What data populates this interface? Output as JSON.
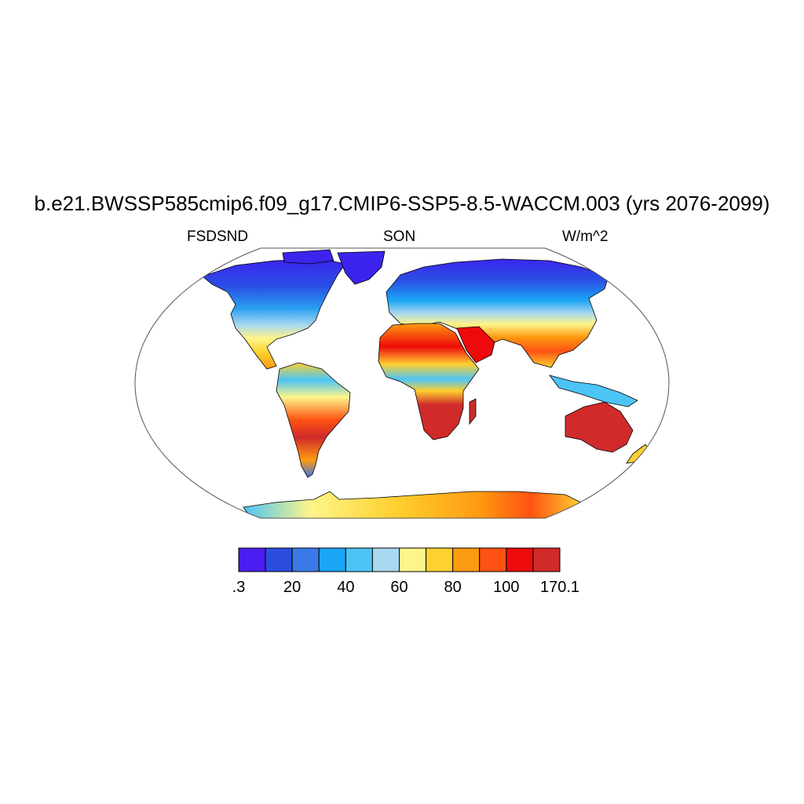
{
  "title": "b.e21.BWSSP585cmip6.f09_g17.CMIP6-SSP5-8.5-WACCM.003 (yrs 2076-2099)",
  "variable": "FSDSND",
  "season": "SON",
  "units": "W/m^2",
  "colorbar": {
    "colors": [
      "#4a1ef0",
      "#2a4de0",
      "#3a7ae8",
      "#1aa6f5",
      "#4cc4f5",
      "#a8d8f0",
      "#fef58a",
      "#fed030",
      "#fe9a10",
      "#fe5212",
      "#ee0a0a",
      "#d02a2a"
    ],
    "labels": [
      ".3",
      "20",
      "40",
      "60",
      "80",
      "100",
      "170.1"
    ]
  },
  "colors": {
    "land_outline": "#000000",
    "ocean": "#ffffff",
    "map_border": "#555555"
  }
}
